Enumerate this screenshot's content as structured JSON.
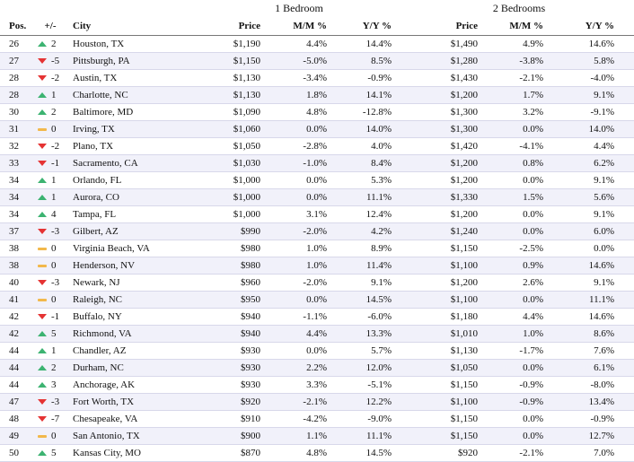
{
  "group_headers": {
    "one_bedroom": "1 Bedroom",
    "two_bedrooms": "2 Bedrooms"
  },
  "columns": {
    "pos": "Pos.",
    "change": "+/-",
    "city": "City",
    "price_1br": "Price",
    "mm_1br": "M/M %",
    "yy_1br": "Y/Y %",
    "price_2br": "Price",
    "mm_2br": "M/M %",
    "yy_2br": "Y/Y %"
  },
  "indicator_colors": {
    "up": "#3cb371",
    "down": "#e53333",
    "same": "#f2b84b"
  },
  "rows": [
    {
      "pos": "26",
      "trend": "up",
      "change": "2",
      "city": "Houston, TX",
      "price1": "$1,190",
      "mm1": "4.4%",
      "yy1": "14.4%",
      "price2": "$1,490",
      "mm2": "4.9%",
      "yy2": "14.6%"
    },
    {
      "pos": "27",
      "trend": "down",
      "change": "-5",
      "city": "Pittsburgh, PA",
      "price1": "$1,150",
      "mm1": "-5.0%",
      "yy1": "8.5%",
      "price2": "$1,280",
      "mm2": "-3.8%",
      "yy2": "5.8%"
    },
    {
      "pos": "28",
      "trend": "down",
      "change": "-2",
      "city": "Austin, TX",
      "price1": "$1,130",
      "mm1": "-3.4%",
      "yy1": "-0.9%",
      "price2": "$1,430",
      "mm2": "-2.1%",
      "yy2": "-4.0%"
    },
    {
      "pos": "28",
      "trend": "up",
      "change": "1",
      "city": "Charlotte, NC",
      "price1": "$1,130",
      "mm1": "1.8%",
      "yy1": "14.1%",
      "price2": "$1,200",
      "mm2": "1.7%",
      "yy2": "9.1%"
    },
    {
      "pos": "30",
      "trend": "up",
      "change": "2",
      "city": "Baltimore, MD",
      "price1": "$1,090",
      "mm1": "4.8%",
      "yy1": "-12.8%",
      "price2": "$1,300",
      "mm2": "3.2%",
      "yy2": "-9.1%"
    },
    {
      "pos": "31",
      "trend": "same",
      "change": "0",
      "city": "Irving, TX",
      "price1": "$1,060",
      "mm1": "0.0%",
      "yy1": "14.0%",
      "price2": "$1,300",
      "mm2": "0.0%",
      "yy2": "14.0%"
    },
    {
      "pos": "32",
      "trend": "down",
      "change": "-2",
      "city": "Plano, TX",
      "price1": "$1,050",
      "mm1": "-2.8%",
      "yy1": "4.0%",
      "price2": "$1,420",
      "mm2": "-4.1%",
      "yy2": "4.4%"
    },
    {
      "pos": "33",
      "trend": "down",
      "change": "-1",
      "city": "Sacramento, CA",
      "price1": "$1,030",
      "mm1": "-1.0%",
      "yy1": "8.4%",
      "price2": "$1,200",
      "mm2": "0.8%",
      "yy2": "6.2%"
    },
    {
      "pos": "34",
      "trend": "up",
      "change": "1",
      "city": "Orlando, FL",
      "price1": "$1,000",
      "mm1": "0.0%",
      "yy1": "5.3%",
      "price2": "$1,200",
      "mm2": "0.0%",
      "yy2": "9.1%"
    },
    {
      "pos": "34",
      "trend": "up",
      "change": "1",
      "city": "Aurora, CO",
      "price1": "$1,000",
      "mm1": "0.0%",
      "yy1": "11.1%",
      "price2": "$1,330",
      "mm2": "1.5%",
      "yy2": "5.6%"
    },
    {
      "pos": "34",
      "trend": "up",
      "change": "4",
      "city": "Tampa, FL",
      "price1": "$1,000",
      "mm1": "3.1%",
      "yy1": "12.4%",
      "price2": "$1,200",
      "mm2": "0.0%",
      "yy2": "9.1%"
    },
    {
      "pos": "37",
      "trend": "down",
      "change": "-3",
      "city": "Gilbert, AZ",
      "price1": "$990",
      "mm1": "-2.0%",
      "yy1": "4.2%",
      "price2": "$1,240",
      "mm2": "0.0%",
      "yy2": "6.0%"
    },
    {
      "pos": "38",
      "trend": "same",
      "change": "0",
      "city": "Virginia Beach, VA",
      "price1": "$980",
      "mm1": "1.0%",
      "yy1": "8.9%",
      "price2": "$1,150",
      "mm2": "-2.5%",
      "yy2": "0.0%"
    },
    {
      "pos": "38",
      "trend": "same",
      "change": "0",
      "city": "Henderson, NV",
      "price1": "$980",
      "mm1": "1.0%",
      "yy1": "11.4%",
      "price2": "$1,100",
      "mm2": "0.9%",
      "yy2": "14.6%"
    },
    {
      "pos": "40",
      "trend": "down",
      "change": "-3",
      "city": "Newark, NJ",
      "price1": "$960",
      "mm1": "-2.0%",
      "yy1": "9.1%",
      "price2": "$1,200",
      "mm2": "2.6%",
      "yy2": "9.1%"
    },
    {
      "pos": "41",
      "trend": "same",
      "change": "0",
      "city": "Raleigh, NC",
      "price1": "$950",
      "mm1": "0.0%",
      "yy1": "14.5%",
      "price2": "$1,100",
      "mm2": "0.0%",
      "yy2": "11.1%"
    },
    {
      "pos": "42",
      "trend": "down",
      "change": "-1",
      "city": "Buffalo, NY",
      "price1": "$940",
      "mm1": "-1.1%",
      "yy1": "-6.0%",
      "price2": "$1,180",
      "mm2": "4.4%",
      "yy2": "14.6%"
    },
    {
      "pos": "42",
      "trend": "up",
      "change": "5",
      "city": "Richmond, VA",
      "price1": "$940",
      "mm1": "4.4%",
      "yy1": "13.3%",
      "price2": "$1,010",
      "mm2": "1.0%",
      "yy2": "8.6%"
    },
    {
      "pos": "44",
      "trend": "up",
      "change": "1",
      "city": "Chandler, AZ",
      "price1": "$930",
      "mm1": "0.0%",
      "yy1": "5.7%",
      "price2": "$1,130",
      "mm2": "-1.7%",
      "yy2": "7.6%"
    },
    {
      "pos": "44",
      "trend": "up",
      "change": "2",
      "city": "Durham, NC",
      "price1": "$930",
      "mm1": "2.2%",
      "yy1": "12.0%",
      "price2": "$1,050",
      "mm2": "0.0%",
      "yy2": "6.1%"
    },
    {
      "pos": "44",
      "trend": "up",
      "change": "3",
      "city": "Anchorage, AK",
      "price1": "$930",
      "mm1": "3.3%",
      "yy1": "-5.1%",
      "price2": "$1,150",
      "mm2": "-0.9%",
      "yy2": "-8.0%"
    },
    {
      "pos": "47",
      "trend": "down",
      "change": "-3",
      "city": "Fort Worth, TX",
      "price1": "$920",
      "mm1": "-2.1%",
      "yy1": "12.2%",
      "price2": "$1,100",
      "mm2": "-0.9%",
      "yy2": "13.4%"
    },
    {
      "pos": "48",
      "trend": "down",
      "change": "-7",
      "city": "Chesapeake, VA",
      "price1": "$910",
      "mm1": "-4.2%",
      "yy1": "-9.0%",
      "price2": "$1,150",
      "mm2": "0.0%",
      "yy2": "-0.9%"
    },
    {
      "pos": "49",
      "trend": "same",
      "change": "0",
      "city": "San Antonio, TX",
      "price1": "$900",
      "mm1": "1.1%",
      "yy1": "11.1%",
      "price2": "$1,150",
      "mm2": "0.0%",
      "yy2": "12.7%"
    },
    {
      "pos": "50",
      "trend": "up",
      "change": "5",
      "city": "Kansas City, MO",
      "price1": "$870",
      "mm1": "4.8%",
      "yy1": "14.5%",
      "price2": "$920",
      "mm2": "-2.1%",
      "yy2": "7.0%"
    }
  ]
}
